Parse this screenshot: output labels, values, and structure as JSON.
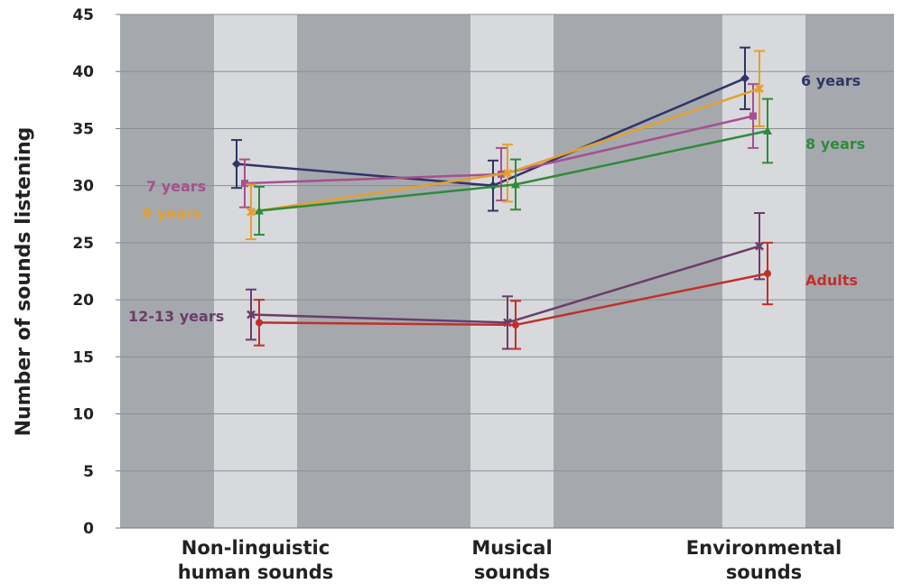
{
  "chart_data": {
    "type": "line",
    "title": "",
    "xlabel": "",
    "ylabel": "Number of sounds listening",
    "ylim": [
      0,
      45
    ],
    "yticks": [
      0,
      5,
      10,
      15,
      20,
      25,
      30,
      35,
      40,
      45
    ],
    "grid": true,
    "categories": [
      [
        "Non-linguistic",
        "human sounds"
      ],
      [
        "Musical",
        "sounds"
      ],
      [
        "Environmental",
        "sounds"
      ]
    ],
    "colors": {
      "background_dark": "#a5a9ae",
      "background_light": "#d8d9dc",
      "gridline": "#8b8f94"
    },
    "series": [
      {
        "name": "6 years",
        "color": "#2f3566",
        "marker": "diamond",
        "values": [
          31.9,
          30.0,
          39.4
        ],
        "err": [
          2.1,
          2.2,
          2.7
        ]
      },
      {
        "name": "7 years",
        "color": "#a6508f",
        "marker": "square",
        "values": [
          30.2,
          31.0,
          36.1
        ],
        "err": [
          2.1,
          2.3,
          2.8
        ]
      },
      {
        "name": "9 years",
        "color": "#e3a02e",
        "marker": "x",
        "values": [
          27.7,
          31.1,
          38.5
        ],
        "err": [
          2.4,
          2.5,
          3.3
        ]
      },
      {
        "name": "8 years",
        "color": "#2e8b3a",
        "marker": "triangle",
        "values": [
          27.8,
          30.1,
          34.8
        ],
        "err": [
          2.1,
          2.2,
          2.8
        ]
      },
      {
        "name": "12-13 years",
        "color": "#6a3d6a",
        "marker": "x",
        "values": [
          18.7,
          18.0,
          24.7
        ],
        "err": [
          2.2,
          2.3,
          2.9
        ]
      },
      {
        "name": "Adults",
        "color": "#c0302a",
        "marker": "circle",
        "values": [
          18.0,
          17.8,
          22.3
        ],
        "err": [
          2.0,
          2.1,
          2.7
        ]
      }
    ]
  }
}
